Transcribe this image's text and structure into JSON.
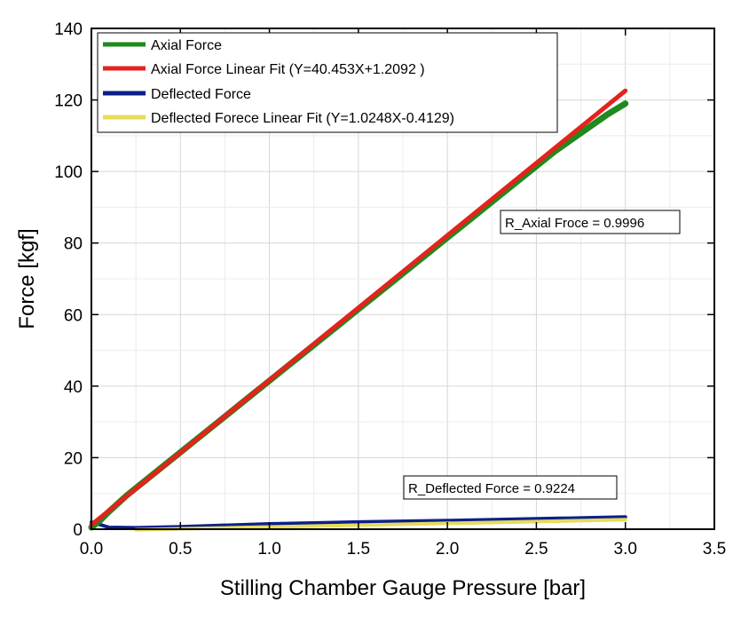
{
  "chart_data": {
    "type": "line",
    "title": "",
    "xlabel": "Stilling Chamber Gauge Pressure [bar]",
    "ylabel": "Force [kgf]",
    "xlim": [
      0.0,
      3.5
    ],
    "ylim": [
      0,
      140
    ],
    "xticks": [
      "0.0",
      "0.5",
      "1.0",
      "1.5",
      "2.0",
      "2.5",
      "3.0",
      "3.5"
    ],
    "yticks": [
      "0",
      "20",
      "40",
      "60",
      "80",
      "100",
      "120",
      "140"
    ],
    "grid": true,
    "legend_position": "top-left",
    "series": [
      {
        "name": "Axial Force",
        "color": "#1e8a1e",
        "x": [
          0.0,
          0.05,
          0.1,
          0.2,
          0.3,
          0.4,
          0.5,
          0.6,
          0.7,
          0.8,
          0.9,
          1.0,
          1.1,
          1.2,
          1.3,
          1.4,
          1.5,
          1.6,
          1.7,
          1.8,
          1.9,
          2.0,
          2.1,
          2.2,
          2.3,
          2.4,
          2.5,
          2.6,
          2.7,
          2.8,
          2.9,
          3.0
        ],
        "y": [
          0.5,
          2.5,
          5.0,
          9.5,
          13.5,
          17.5,
          21.5,
          25.5,
          29.5,
          33.5,
          37.5,
          41.5,
          45.5,
          49.5,
          53.5,
          57.5,
          61.5,
          65.5,
          69.5,
          73.5,
          77.5,
          81.5,
          85.5,
          89.5,
          93.5,
          97.5,
          101.5,
          105.5,
          109.0,
          112.5,
          116.0,
          119.0
        ]
      },
      {
        "name": "Axial Force Linear Fit (Y=40.453X+1.2092 )",
        "color": "#e3231c",
        "x": [
          0.0,
          3.0
        ],
        "y": [
          1.2092,
          122.5682
        ]
      },
      {
        "name": "Deflected Force",
        "color": "#0d1f8a",
        "x": [
          0.0,
          0.1,
          0.25,
          0.5,
          1.0,
          1.5,
          2.0,
          2.5,
          3.0
        ],
        "y": [
          2.0,
          0.5,
          0.4,
          0.7,
          1.5,
          2.0,
          2.4,
          2.9,
          3.4
        ]
      },
      {
        "name": "Deflected Forece Linear Fit (Y=1.0248X-0.4129)",
        "color": "#e6dc5a",
        "x": [
          0.25,
          3.0
        ],
        "y": [
          -0.1567,
          2.6615
        ]
      }
    ],
    "annotations": [
      {
        "text": "R_Axial Froce = 0.9996"
      },
      {
        "text": "R_Deflected Force = 0.9224"
      }
    ]
  }
}
